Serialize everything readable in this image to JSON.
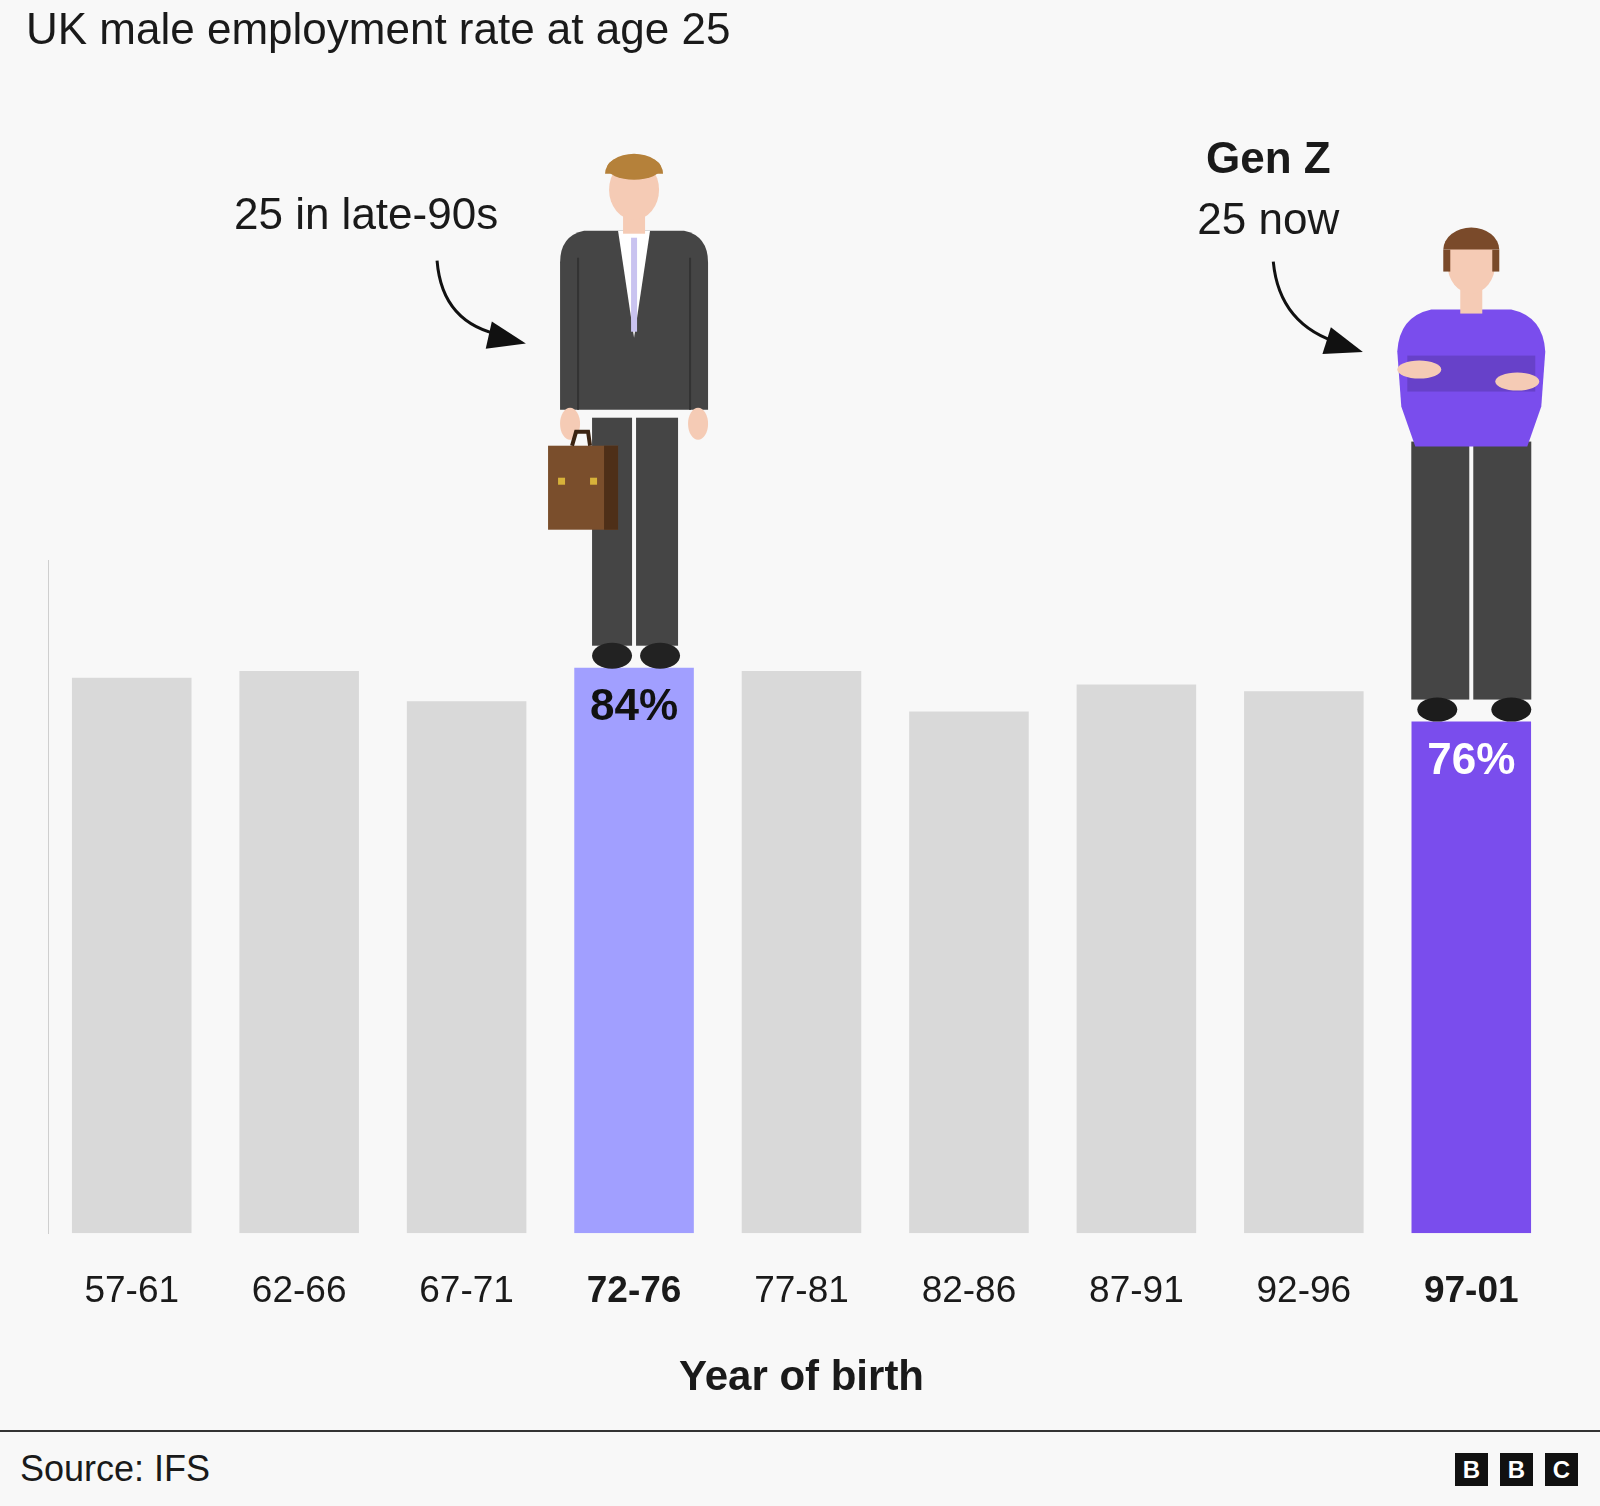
{
  "chart_data": {
    "type": "bar",
    "title": "UK male employment rate at age 25",
    "x_label": "Year of birth",
    "categories": [
      "57-61",
      "62-66",
      "67-71",
      "72-76",
      "77-81",
      "82-86",
      "87-91",
      "92-96",
      "97-01"
    ],
    "values": [
      82.5,
      83.5,
      79,
      84,
      83.5,
      77.5,
      81.5,
      80.5,
      76
    ],
    "value_labels": [
      null,
      null,
      null,
      "84%",
      null,
      null,
      null,
      null,
      "76%"
    ],
    "colors": [
      "#d9d9d9",
      "#d9d9d9",
      "#d9d9d9",
      "#a19fff",
      "#d9d9d9",
      "#d9d9d9",
      "#d9d9d9",
      "#d9d9d9",
      "#7a4ded"
    ],
    "ylim": [
      0,
      100
    ],
    "yticks": [],
    "tick_labels": "x",
    "grid": false,
    "annotations": [
      {
        "category": "72-76",
        "text": "25 in late-90s"
      },
      {
        "category": "97-01",
        "title": "Gen Z",
        "text": "25 now"
      }
    ],
    "source": "Source: IFS",
    "logo": "BBC"
  }
}
